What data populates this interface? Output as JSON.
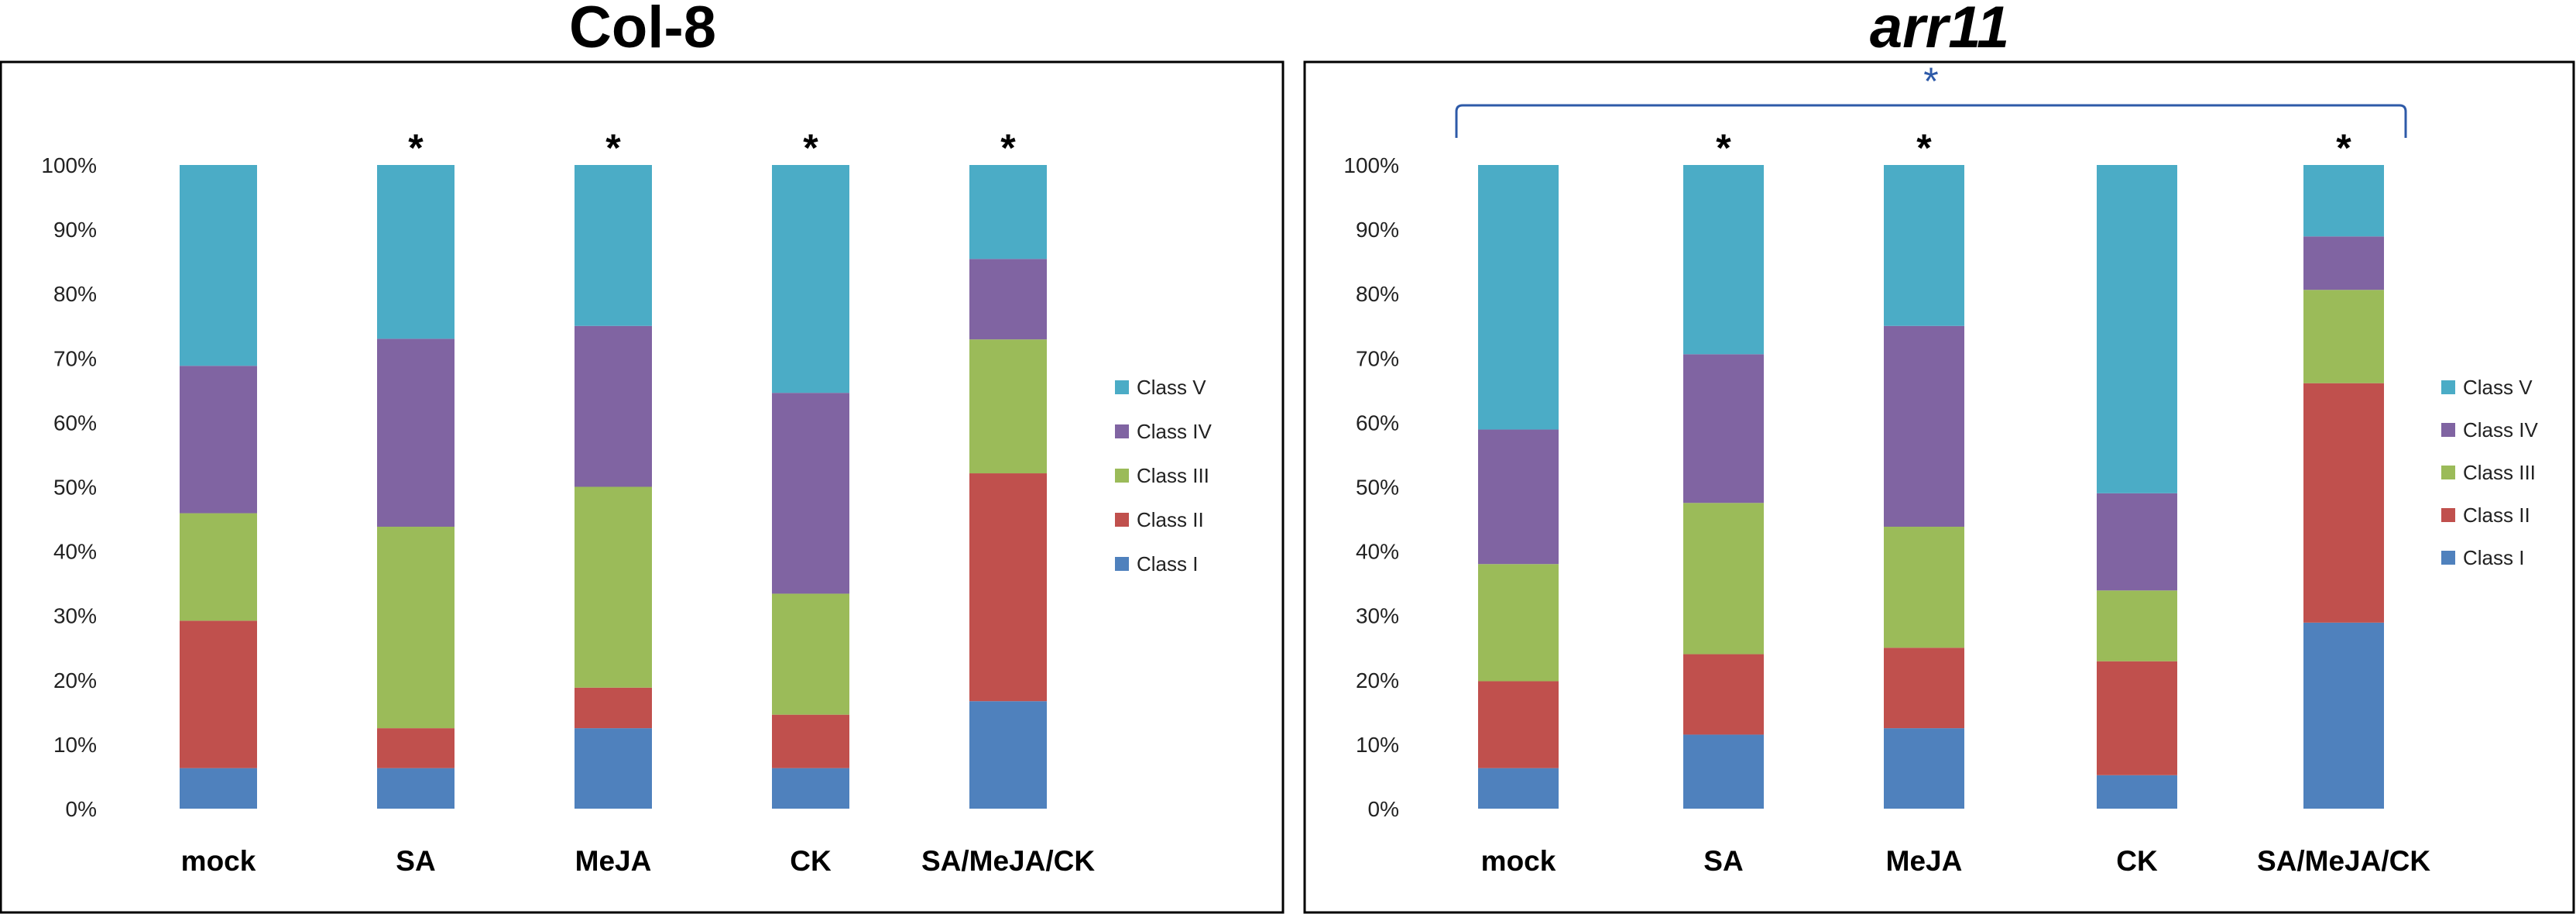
{
  "chart_data": [
    {
      "type": "bar",
      "stacked": true,
      "title": "Col-8",
      "title_italic": false,
      "categories": [
        "mock",
        "SA",
        "MeJA",
        "CK",
        "SA/MeJA/CK"
      ],
      "ylim": [
        0,
        100
      ],
      "yticks": [
        "0%",
        "10%",
        "20%",
        "30%",
        "40%",
        "50%",
        "60%",
        "70%",
        "80%",
        "90%",
        "100%"
      ],
      "grid": false,
      "legend": "right",
      "annotations": [
        "",
        "*",
        "*",
        "*",
        "*"
      ],
      "series": [
        {
          "name": "Class I",
          "color": "#4f81bd",
          "values": [
            6.3,
            6.3,
            12.5,
            6.3,
            16.7
          ]
        },
        {
          "name": "Class II",
          "color": "#c0504d",
          "values": [
            22.9,
            6.2,
            6.3,
            8.3,
            35.4
          ]
        },
        {
          "name": "Class III",
          "color": "#9bbb59",
          "values": [
            16.7,
            31.3,
            31.2,
            18.8,
            20.8
          ]
        },
        {
          "name": "Class IV",
          "color": "#8064a2",
          "values": [
            22.9,
            29.2,
            25.0,
            31.2,
            12.5
          ]
        },
        {
          "name": "Class V",
          "color": "#4bacc6",
          "values": [
            31.2,
            27.0,
            25.0,
            35.4,
            14.6
          ]
        }
      ]
    },
    {
      "type": "bar",
      "stacked": true,
      "title": "arr11",
      "title_italic": true,
      "categories": [
        "mock",
        "SA",
        "MeJA",
        "CK",
        "SA/MeJA/CK"
      ],
      "ylim": [
        0,
        100
      ],
      "yticks": [
        "0%",
        "10%",
        "20%",
        "30%",
        "40%",
        "50%",
        "60%",
        "70%",
        "80%",
        "90%",
        "100%"
      ],
      "grid": false,
      "legend": "right",
      "annotations": [
        "",
        "*",
        "*",
        "",
        "*"
      ],
      "bracket_annotation": {
        "label": "*",
        "from": "mock",
        "to": "SA/MeJA/CK",
        "color": "#2e5aa8"
      },
      "series": [
        {
          "name": "Class I",
          "color": "#4f81bd",
          "values": [
            6.3,
            11.5,
            12.5,
            5.2,
            28.9
          ]
        },
        {
          "name": "Class II",
          "color": "#c0504d",
          "values": [
            13.5,
            12.5,
            12.5,
            17.7,
            37.2
          ]
        },
        {
          "name": "Class III",
          "color": "#9bbb59",
          "values": [
            18.2,
            23.5,
            18.8,
            11.0,
            14.5
          ]
        },
        {
          "name": "Class IV",
          "color": "#8064a2",
          "values": [
            20.9,
            23.1,
            31.2,
            15.1,
            8.3
          ]
        },
        {
          "name": "Class V",
          "color": "#4bacc6",
          "values": [
            41.1,
            29.4,
            25.0,
            51.0,
            11.1
          ]
        }
      ]
    }
  ]
}
